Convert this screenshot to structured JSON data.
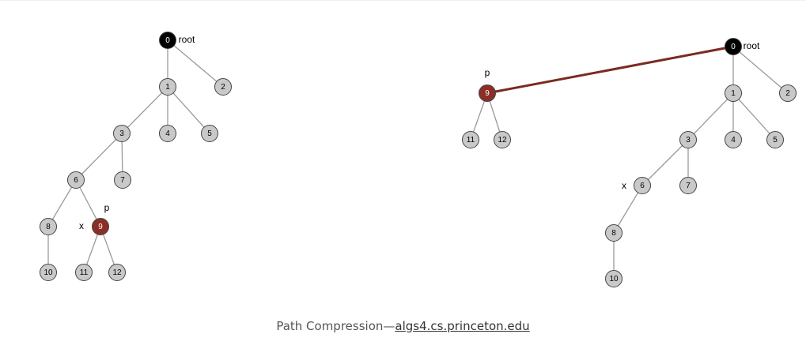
{
  "colors": {
    "node_fill": "#c9c9c9",
    "root_fill": "#000000",
    "highlight_fill": "#8b2e25",
    "edge": "#9a9a9a",
    "compressed_edge": "#7b2a22"
  },
  "caption": {
    "text": "Path Compression—",
    "link_text": "algs4.cs.princeton.edu"
  },
  "before_tree": {
    "nodes": [
      {
        "id": "0",
        "label": "0",
        "style": "root"
      },
      {
        "id": "1",
        "label": "1",
        "style": "normal"
      },
      {
        "id": "2",
        "label": "2",
        "style": "normal"
      },
      {
        "id": "3",
        "label": "3",
        "style": "normal"
      },
      {
        "id": "4",
        "label": "4",
        "style": "normal"
      },
      {
        "id": "5",
        "label": "5",
        "style": "normal"
      },
      {
        "id": "6",
        "label": "6",
        "style": "normal"
      },
      {
        "id": "7",
        "label": "7",
        "style": "normal"
      },
      {
        "id": "8",
        "label": "8",
        "style": "normal"
      },
      {
        "id": "9",
        "label": "9",
        "style": "highlight"
      },
      {
        "id": "10",
        "label": "10",
        "style": "normal"
      },
      {
        "id": "11",
        "label": "11",
        "style": "normal"
      },
      {
        "id": "12",
        "label": "12",
        "style": "normal"
      }
    ],
    "edges": [
      {
        "from": "0",
        "to": "1"
      },
      {
        "from": "0",
        "to": "2"
      },
      {
        "from": "1",
        "to": "3"
      },
      {
        "from": "1",
        "to": "4"
      },
      {
        "from": "1",
        "to": "5"
      },
      {
        "from": "3",
        "to": "6"
      },
      {
        "from": "3",
        "to": "7"
      },
      {
        "from": "6",
        "to": "8"
      },
      {
        "from": "6",
        "to": "9"
      },
      {
        "from": "8",
        "to": "10"
      },
      {
        "from": "9",
        "to": "11"
      },
      {
        "from": "9",
        "to": "12"
      }
    ],
    "labels": [
      {
        "text": "root",
        "node": "0"
      },
      {
        "text": "p",
        "node": "9"
      },
      {
        "text": "x",
        "node": "9"
      }
    ]
  },
  "after_tree": {
    "nodes": [
      {
        "id": "0",
        "label": "0",
        "style": "root"
      },
      {
        "id": "1",
        "label": "1",
        "style": "normal"
      },
      {
        "id": "2",
        "label": "2",
        "style": "normal"
      },
      {
        "id": "3",
        "label": "3",
        "style": "normal"
      },
      {
        "id": "4",
        "label": "4",
        "style": "normal"
      },
      {
        "id": "5",
        "label": "5",
        "style": "normal"
      },
      {
        "id": "6",
        "label": "6",
        "style": "normal"
      },
      {
        "id": "7",
        "label": "7",
        "style": "normal"
      },
      {
        "id": "8",
        "label": "8",
        "style": "normal"
      },
      {
        "id": "9",
        "label": "9",
        "style": "highlight"
      },
      {
        "id": "10",
        "label": "10",
        "style": "normal"
      },
      {
        "id": "11",
        "label": "11",
        "style": "normal"
      },
      {
        "id": "12",
        "label": "12",
        "style": "normal"
      }
    ],
    "edges": [
      {
        "from": "0",
        "to": "9",
        "strong": true
      },
      {
        "from": "0",
        "to": "1"
      },
      {
        "from": "0",
        "to": "2"
      },
      {
        "from": "1",
        "to": "3"
      },
      {
        "from": "1",
        "to": "4"
      },
      {
        "from": "1",
        "to": "5"
      },
      {
        "from": "3",
        "to": "6"
      },
      {
        "from": "3",
        "to": "7"
      },
      {
        "from": "6",
        "to": "8"
      },
      {
        "from": "8",
        "to": "10"
      },
      {
        "from": "9",
        "to": "11"
      },
      {
        "from": "9",
        "to": "12"
      }
    ],
    "labels": [
      {
        "text": "root",
        "node": "0"
      },
      {
        "text": "p",
        "node": "9"
      },
      {
        "text": "x",
        "node": "6"
      }
    ]
  }
}
